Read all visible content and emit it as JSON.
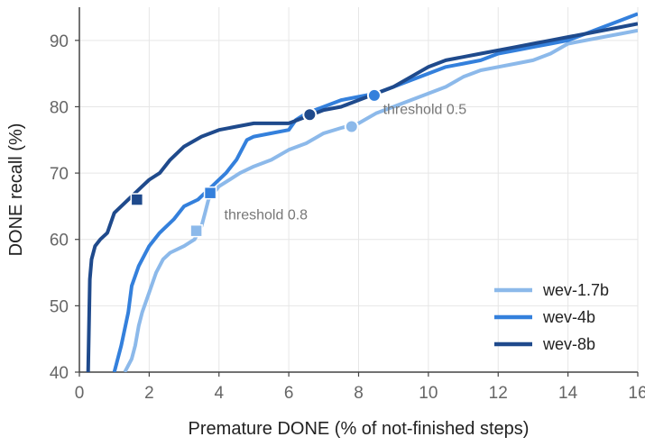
{
  "chart_data": {
    "type": "line",
    "title": "",
    "xlabel": "Premature DONE (% of not-finished steps)",
    "ylabel": "DONE recall (%)",
    "xlim": [
      0,
      16
    ],
    "ylim": [
      40,
      95
    ],
    "xticks": [
      0,
      2,
      4,
      6,
      8,
      10,
      12,
      14,
      16
    ],
    "xtick_labels": [
      "0",
      "2",
      "4",
      "6",
      "8",
      "10",
      "12",
      "14",
      "16"
    ],
    "yticks": [
      40,
      50,
      60,
      70,
      80,
      90
    ],
    "ytick_labels": [
      "40",
      "50",
      "60",
      "70",
      "80",
      "90"
    ],
    "grid": true,
    "legend": "bottom-right",
    "series": [
      {
        "name": "wev-1.7b",
        "color": "#8cb9ea",
        "x": [
          1.3,
          1.5,
          1.6,
          1.7,
          1.8,
          2.0,
          2.2,
          2.4,
          2.6,
          3.0,
          3.3,
          3.5,
          3.6,
          3.7,
          4.0,
          4.3,
          4.6,
          5.0,
          5.5,
          6.0,
          6.5,
          7.0,
          7.5,
          8.0,
          8.5,
          9.0,
          9.5,
          10.0,
          10.5,
          11.0,
          11.5,
          12.0,
          12.5,
          13.0,
          13.5,
          14.0,
          14.5,
          15.0,
          15.5,
          16.0
        ],
        "y": [
          40,
          42,
          44,
          47,
          49,
          52,
          55,
          57,
          58,
          59,
          60,
          62,
          64,
          66,
          68,
          69,
          70,
          71,
          72,
          73.5,
          74.5,
          76,
          76.8,
          77.5,
          79,
          80,
          81,
          82,
          83,
          84.5,
          85.5,
          86,
          86.5,
          87,
          88,
          89.5,
          90,
          90.5,
          91,
          91.5
        ]
      },
      {
        "name": "wev-4b",
        "color": "#3480dc",
        "x": [
          1.0,
          1.2,
          1.4,
          1.5,
          1.7,
          2.0,
          2.3,
          2.7,
          3.0,
          3.4,
          3.8,
          4.2,
          4.5,
          4.8,
          5.0,
          5.5,
          6.0,
          6.2,
          6.5,
          7.0,
          7.5,
          8.0,
          8.5,
          9.0,
          9.5,
          10.0,
          10.5,
          11.0,
          11.5,
          12.0,
          12.5,
          13.0,
          13.5,
          14.0,
          14.5,
          15.0,
          15.5,
          16.0
        ],
        "y": [
          40,
          44,
          49,
          53,
          56,
          59,
          61,
          63,
          65,
          66,
          68,
          70,
          72,
          75,
          75.5,
          76,
          76.5,
          78,
          79,
          80,
          81,
          81.5,
          82,
          83,
          84,
          85,
          86,
          86.5,
          87,
          88,
          88.5,
          89,
          89.5,
          90,
          91,
          92,
          93,
          94
        ]
      },
      {
        "name": "wev-8b",
        "color": "#1f4a8c",
        "x": [
          0.25,
          0.3,
          0.35,
          0.45,
          0.6,
          0.8,
          1.0,
          1.2,
          1.4,
          1.6,
          1.8,
          2.0,
          2.3,
          2.6,
          3.0,
          3.5,
          4.0,
          4.5,
          5.0,
          5.5,
          6.0,
          6.5,
          7.0,
          7.5,
          8.0,
          8.5,
          9.0,
          9.5,
          10.0,
          10.5,
          11.0,
          11.5,
          12.0,
          12.5,
          13.0,
          13.5,
          14.0,
          14.5,
          15.0,
          15.5,
          16.0
        ],
        "y": [
          40,
          54,
          57,
          59,
          60,
          61,
          64,
          65,
          66,
          67,
          68,
          69,
          70,
          72,
          74,
          75.5,
          76.5,
          77,
          77.5,
          77.5,
          77.5,
          78.5,
          79.5,
          80,
          81,
          82,
          83,
          84.5,
          86,
          87,
          87.5,
          88,
          88.5,
          89,
          89.5,
          90,
          90.5,
          91,
          91.5,
          92,
          92.5
        ]
      }
    ],
    "markers": [
      {
        "series": "wev-1.7b",
        "threshold": 0.8,
        "x": 3.35,
        "y": 61.3,
        "shape": "square"
      },
      {
        "series": "wev-4b",
        "threshold": 0.8,
        "x": 3.75,
        "y": 67.0,
        "shape": "square"
      },
      {
        "series": "wev-8b",
        "threshold": 0.8,
        "x": 1.65,
        "y": 66.0,
        "shape": "square"
      },
      {
        "series": "wev-1.7b",
        "threshold": 0.5,
        "x": 7.8,
        "y": 77.0,
        "shape": "circle"
      },
      {
        "series": "wev-4b",
        "threshold": 0.5,
        "x": 8.45,
        "y": 81.7,
        "shape": "circle"
      },
      {
        "series": "wev-8b",
        "threshold": 0.5,
        "x": 6.6,
        "y": 78.8,
        "shape": "circle"
      }
    ],
    "annotations": [
      {
        "text": "threshold 0.5",
        "x": 8.7,
        "y": 78.9
      },
      {
        "text": "threshold 0.8",
        "x": 4.15,
        "y": 63.0
      }
    ]
  }
}
